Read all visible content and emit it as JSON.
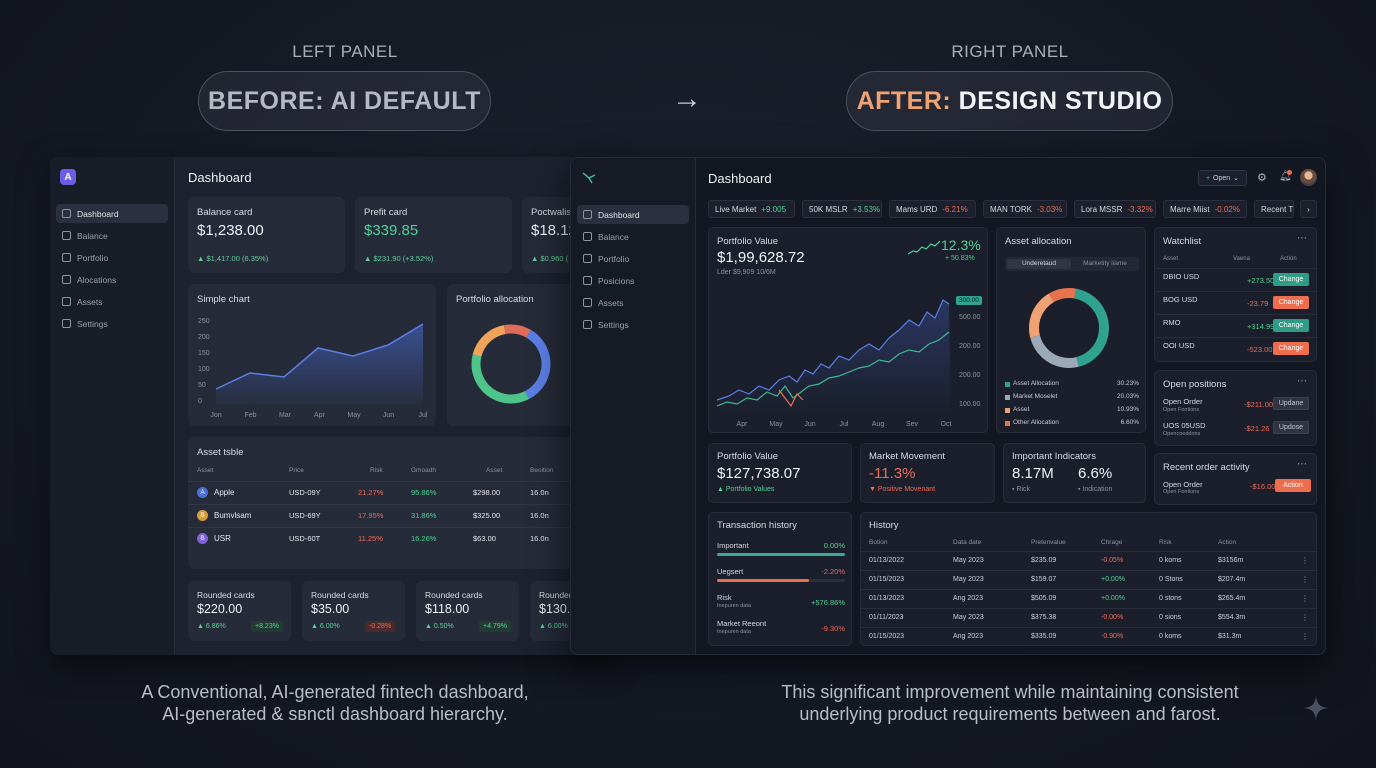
{
  "header": {
    "left_label": "LEFT PANEL",
    "right_label": "RIGHT PANEL",
    "left_pill": "BEFORE: AI DEFAULT",
    "right_pill_accent": "AFTER:",
    "right_pill_rest": " DESIGN STUDIO",
    "arrow": "→"
  },
  "captions": {
    "left_line1": "A Conventional, AI-generated fintech dashboard,",
    "left_line2": "AI-generated & sвnctl dashboard hierarchy.",
    "right_line1": "This significant improvement while maintaining consistent",
    "right_line2": "underlying product requirements between and farost."
  },
  "left": {
    "logo": "A",
    "title": "Dashboard",
    "nav": [
      "Dashboard",
      "Balance",
      "Portfolio",
      "Alocations",
      "Assets",
      "Settings"
    ],
    "cards": [
      {
        "title": "Balance card",
        "value": "$1,238.00",
        "sub": "▲ $1,417.00 (6.35%)"
      },
      {
        "title": "Prefit card",
        "value": "$339.85",
        "sub": "▲ $231.90 (+3.52%)"
      },
      {
        "title": "Poctwalis",
        "value": "$18.12",
        "sub": "▲ $0,960 ("
      }
    ],
    "simple_chart": {
      "title": "Simple chart",
      "yticks": [
        "250",
        "200",
        "150",
        "100",
        "50",
        "0"
      ],
      "xticks": [
        "Jon",
        "Feb",
        "Mar",
        "Apr",
        "May",
        "Jun",
        "Jul"
      ]
    },
    "allocation_title": "Portfolio allocation",
    "table": {
      "title": "Asset tsble",
      "headers": [
        "Asset",
        "Price",
        "Risk",
        "Gmoadh",
        "Asset",
        "Beoition"
      ],
      "rows": [
        {
          "icon": "A",
          "color": "#4b6fd8",
          "name": "Apple",
          "price": "USD-09Y",
          "risk": "21.27%",
          "growth": "95.86%",
          "asset": "$298.00",
          "pos": "16.0n"
        },
        {
          "icon": "B",
          "color": "#d89b3a",
          "name": "Bumvlsam",
          "price": "USD-69Y",
          "risk": "17.95%",
          "growth": "31.86%",
          "asset": "$325.00",
          "pos": "16.0n"
        },
        {
          "icon": "B",
          "color": "#7b62d8",
          "name": "USR",
          "price": "USD-60T",
          "risk": "11.25%",
          "growth": "16.26%",
          "asset": "$63.00",
          "pos": "16.0n"
        }
      ]
    },
    "rounded": [
      {
        "title": "Rounded cards",
        "value": "$220.00",
        "a": "▲ 6.86%",
        "b": "+8.23%",
        "b_type": "green"
      },
      {
        "title": "Rounded cards",
        "value": "$35.00",
        "a": "▲ 6.00%",
        "b": "-0.28%",
        "b_type": "red"
      },
      {
        "title": "Rounded cards",
        "value": "$118.00",
        "a": "▲ 0.50%",
        "b": "+4.79%",
        "b_type": "green"
      },
      {
        "title": "Rounder",
        "value": "$130.0",
        "a": "▲ 6.00%",
        "b": "",
        "b_type": "green"
      }
    ]
  },
  "right": {
    "title": "Dashboard",
    "open_btn": "Open",
    "nav": [
      "Dashboard",
      "Balance",
      "Portfolio",
      "Posicions",
      "Assets",
      "Settings"
    ],
    "tickers": [
      {
        "name": "Live Market",
        "chg": "+9.005",
        "type": "green"
      },
      {
        "name": "50K MSLR",
        "chg": "+3.53%",
        "type": "green"
      },
      {
        "name": "Mams URD",
        "chg": "-6.21%",
        "type": "red"
      },
      {
        "name": "MAN TORK",
        "chg": "-3.03%",
        "type": "red"
      },
      {
        "name": "Lora MSSR",
        "chg": "-3.32%",
        "type": "red"
      },
      {
        "name": "Marre Miist",
        "chg": "-0.02%",
        "type": "red"
      },
      {
        "name": "Recent T",
        "chg": "",
        "type": "green"
      }
    ],
    "portfolio": {
      "title": "Portfolio Value",
      "value": "$1,99,628.72",
      "sub": "Lder $9,909 10/6M",
      "pct": "12.3%",
      "pct_sub": "+ 50.83%",
      "yticks": [
        "300.00",
        "500.00",
        "200.00",
        "200.00",
        "100.00",
        "000.00"
      ],
      "xticks": [
        "Apr",
        "May",
        "Jun",
        "Jul",
        "Aug",
        "Sev",
        "Oct"
      ]
    },
    "allocation": {
      "title": "Asset allocation",
      "tab1": "Underetaud",
      "tab2": "Marketity liame",
      "legend": [
        {
          "name": "Asset Allocation",
          "value": "30.23%",
          "color": "#2fa38f"
        },
        {
          "name": "Market Moselet",
          "value": "20.03%",
          "color": "#9aa8b8"
        },
        {
          "name": "Asset",
          "value": "10.93%",
          "color": "#f0a273"
        },
        {
          "name": "Other Allocation",
          "value": "6.60%",
          "color": "#e8734f"
        }
      ]
    },
    "watchlist": {
      "title": "Watchlist",
      "headers": [
        "Asset",
        "Vaena",
        "Action"
      ],
      "rows": [
        {
          "name": "DBIO USD",
          "sub": " ",
          "value": "+273.50",
          "type": "green",
          "btn": "Change"
        },
        {
          "name": "BOG USD",
          "sub": " ",
          "value": "-23.79",
          "type": "red",
          "btn": "Change"
        },
        {
          "name": "RMO",
          "sub": " ",
          "value": "+314.99",
          "type": "green",
          "btn": "Change"
        },
        {
          "name": "OOI USD",
          "sub": " ",
          "value": "-523.00",
          "type": "red",
          "btn": "Change"
        }
      ]
    },
    "open_positions": {
      "title": "Open positions",
      "rows": [
        {
          "name": "Open Order",
          "sub": "Open Fontions",
          "value": "-$211.00",
          "btn": "Updane"
        },
        {
          "name": "UOS 05USD",
          "sub": "Opencoeddons",
          "value": "-$21.26",
          "btn": "Updose"
        }
      ]
    },
    "recent_orders": {
      "title": "Recent order activity",
      "row": {
        "name": "Open Order",
        "sub": "Open Fontions",
        "value": "-$16.00",
        "btn": "Action"
      }
    },
    "portfolio_small": {
      "title": "Portfolio Value",
      "value": "$127,738.07",
      "sub": "▲ Portfolio Values"
    },
    "market_movement": {
      "title": "Market Movement",
      "value": "-11.3%",
      "sub": "▼ Positive Movenant"
    },
    "indicators": {
      "title": "Important Indicators",
      "v1": "8.17M",
      "s1": "▪ Rick",
      "v2": "6.6%",
      "s2": "▪ Indication"
    },
    "transactions": {
      "title": "Transaction history",
      "rows": [
        {
          "name": "Important",
          "sub": "",
          "value": "0.00%",
          "type": "green",
          "bar": 1.0,
          "bar_color": "#36a99a"
        },
        {
          "name": "Uegsert",
          "sub": "",
          "value": "-2.20%",
          "type": "red",
          "bar": 0.72,
          "bar_color": "#ec6e4f"
        },
        {
          "name": "Risk",
          "sub": "Inepuren data",
          "value": "+576.86%",
          "type": "green",
          "bar": 0,
          "bar_color": ""
        },
        {
          "name": "Market Reeont",
          "sub": "Inepuren data",
          "value": "-9.30%",
          "type": "red",
          "bar": 0,
          "bar_color": ""
        }
      ]
    },
    "history": {
      "title": "History",
      "headers": [
        "Botion",
        "Data date",
        "Pretenvalue",
        "Chrage",
        "Risk",
        "Action"
      ],
      "rows": [
        [
          "01/13/2022",
          "May 2023",
          "$235.09",
          "-0.05%",
          "0 koms",
          "$3156m"
        ],
        [
          "01/15/2023",
          "May 2023",
          "$159.07",
          "+0.00%",
          "0 Stons",
          "$207.4m"
        ],
        [
          "01/13/2023",
          "Ang 2023",
          "$505.09",
          "+0.00%",
          "0 stons",
          "$265.4m"
        ],
        [
          "01/11/2023",
          "May 2023",
          "$375.38",
          "-0.00%",
          "0 sions",
          "$554.3m"
        ],
        [
          "01/15/2023",
          "Ang 2023",
          "$335.09",
          "-0.90%",
          "0 koms",
          "$31.3m"
        ]
      ],
      "change_types": [
        "red",
        "green",
        "green",
        "red",
        "red"
      ]
    }
  }
}
